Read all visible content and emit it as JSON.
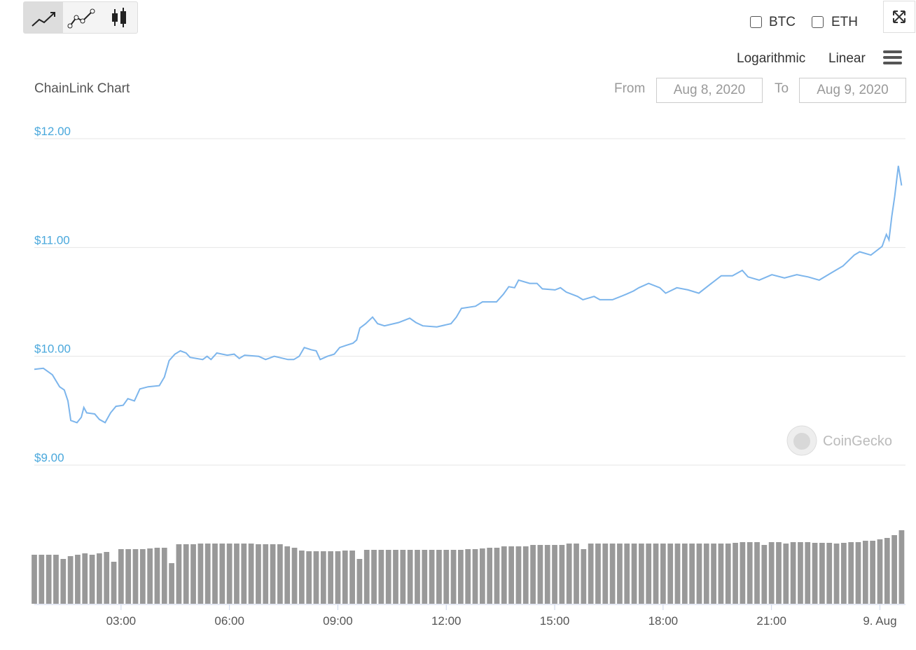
{
  "ui": {
    "toggles": [
      "BTC",
      "ETH"
    ],
    "scales": [
      "Logarithmic",
      "Linear"
    ],
    "from_label": "From",
    "from_date": "Aug 8, 2020",
    "to_label": "To",
    "to_date": "Aug 9, 2020",
    "watermark": "CoinGecko"
  },
  "chart_data": {
    "type": "line",
    "title": "ChainLink Chart",
    "xlim": [
      0.6,
      24.65
    ],
    "xticks": [
      {
        "value": 3,
        "label": "03:00"
      },
      {
        "value": 6,
        "label": "06:00"
      },
      {
        "value": 9,
        "label": "09:00"
      },
      {
        "value": 12,
        "label": "12:00"
      },
      {
        "value": 15,
        "label": "15:00"
      },
      {
        "value": 18,
        "label": "18:00"
      },
      {
        "value": 21,
        "label": "21:00"
      },
      {
        "value": 24,
        "label": "9. Aug"
      }
    ],
    "ylim": [
      9,
      12
    ],
    "yticks": [
      {
        "value": 9,
        "label": "$9.00"
      },
      {
        "value": 10,
        "label": "$10.00"
      },
      {
        "value": 11,
        "label": "$11.00"
      },
      {
        "value": 12,
        "label": "$12.00"
      }
    ],
    "y2lim": [
      0,
      182
    ],
    "grid": true,
    "series": [
      {
        "color": "#7cb5ec",
        "x": [
          0.6,
          0.85,
          1.1,
          1.3,
          1.43,
          1.53,
          1.61,
          1.78,
          1.9,
          1.97,
          2.05,
          2.27,
          2.4,
          2.56,
          2.71,
          2.86,
          3.06,
          3.19,
          3.37,
          3.52,
          3.75,
          4.06,
          4.2,
          4.33,
          4.49,
          4.64,
          4.8,
          4.91,
          5.26,
          5.38,
          5.49,
          5.65,
          5.94,
          6.13,
          6.27,
          6.42,
          6.81,
          7.0,
          7.24,
          7.62,
          7.78,
          7.93,
          8.07,
          8.26,
          8.4,
          8.51,
          8.71,
          8.9,
          9.05,
          9.23,
          9.42,
          9.52,
          9.61,
          9.77,
          9.96,
          10.1,
          10.29,
          10.68,
          10.99,
          11.16,
          11.35,
          11.74,
          12.13,
          12.28,
          12.42,
          12.81,
          13.0,
          13.39,
          13.58,
          13.73,
          13.89,
          14.0,
          14.31,
          14.51,
          14.66,
          15.01,
          15.16,
          15.32,
          15.63,
          15.78,
          16.09,
          16.25,
          16.6,
          16.98,
          17.18,
          17.33,
          17.6,
          17.91,
          18.07,
          18.38,
          18.69,
          18.99,
          19.3,
          19.61,
          19.92,
          20.19,
          20.35,
          20.66,
          21.01,
          21.36,
          21.7,
          22.01,
          22.32,
          22.67,
          22.98,
          23.29,
          23.44,
          23.75,
          24.06,
          24.18,
          24.25,
          24.33,
          24.41,
          24.51,
          24.6
        ],
        "values": [
          9.88,
          9.89,
          9.83,
          9.72,
          9.69,
          9.59,
          9.41,
          9.39,
          9.44,
          9.53,
          9.48,
          9.47,
          9.42,
          9.39,
          9.48,
          9.54,
          9.55,
          9.61,
          9.59,
          9.7,
          9.72,
          9.73,
          9.81,
          9.96,
          10.02,
          10.05,
          10.03,
          9.99,
          9.97,
          10.0,
          9.97,
          10.03,
          10.01,
          10.02,
          9.98,
          10.01,
          10.0,
          9.97,
          10.0,
          9.97,
          9.97,
          10.0,
          10.08,
          10.06,
          10.05,
          9.97,
          10.0,
          10.02,
          10.08,
          10.1,
          10.12,
          10.15,
          10.26,
          10.3,
          10.36,
          10.3,
          10.28,
          10.31,
          10.35,
          10.31,
          10.28,
          10.27,
          10.3,
          10.36,
          10.44,
          10.46,
          10.5,
          10.5,
          10.57,
          10.64,
          10.63,
          10.7,
          10.67,
          10.67,
          10.62,
          10.61,
          10.63,
          10.59,
          10.55,
          10.52,
          10.55,
          10.52,
          10.52,
          10.57,
          10.6,
          10.63,
          10.67,
          10.63,
          10.58,
          10.63,
          10.61,
          10.58,
          10.66,
          10.74,
          10.74,
          10.79,
          10.73,
          10.7,
          10.75,
          10.72,
          10.75,
          10.73,
          10.7,
          10.77,
          10.83,
          10.93,
          10.96,
          10.93,
          11.01,
          11.12,
          11.07,
          11.29,
          11.47,
          11.75,
          11.57
        ]
      },
      {
        "type": "bar",
        "axis": "y2",
        "color": "#999999",
        "x": [
          0.6,
          0.8,
          1.0,
          1.2,
          1.4,
          1.6,
          1.8,
          2.0,
          2.2,
          2.4,
          2.6,
          2.8,
          3.0,
          3.2,
          3.4,
          3.6,
          3.8,
          4.0,
          4.2,
          4.4,
          4.6,
          4.8,
          5.0,
          5.2,
          5.4,
          5.6,
          5.8,
          6.0,
          6.2,
          6.4,
          6.6,
          6.8,
          7.0,
          7.2,
          7.4,
          7.6,
          7.8,
          8.0,
          8.2,
          8.4,
          8.6,
          8.8,
          9.0,
          9.2,
          9.4,
          9.6,
          9.8,
          10.0,
          10.2,
          10.4,
          10.6,
          10.8,
          11.0,
          11.2,
          11.4,
          11.6,
          11.8,
          12.0,
          12.2,
          12.4,
          12.6,
          12.8,
          13.0,
          13.2,
          13.4,
          13.6,
          13.8,
          14.0,
          14.2,
          14.4,
          14.6,
          14.8,
          15.0,
          15.2,
          15.4,
          15.6,
          15.8,
          16.0,
          16.2,
          16.4,
          16.6,
          16.8,
          17.0,
          17.2,
          17.4,
          17.6,
          17.8,
          18.0,
          18.2,
          18.4,
          18.6,
          18.8,
          19.0,
          19.2,
          19.4,
          19.6,
          19.8,
          20.0,
          20.2,
          20.4,
          20.6,
          20.8,
          21.0,
          21.2,
          21.4,
          21.6,
          21.8,
          22.0,
          22.2,
          22.4,
          22.6,
          22.8,
          23.0,
          23.2,
          23.4,
          23.6,
          23.8,
          24.0,
          24.2,
          24.4,
          24.6
        ],
        "values": [
          70,
          70,
          70,
          70,
          64,
          68,
          70,
          72,
          70,
          72,
          74,
          60,
          78,
          78,
          78,
          78,
          79,
          80,
          80,
          58,
          85,
          85,
          85,
          86,
          86,
          86,
          86,
          86,
          86,
          86,
          86,
          85,
          85,
          85,
          85,
          82,
          80,
          76,
          75,
          75,
          75,
          75,
          75,
          76,
          76,
          64,
          77,
          77,
          77,
          77,
          77,
          77,
          77,
          77,
          77,
          77,
          77,
          77,
          77,
          77,
          78,
          78,
          79,
          80,
          80,
          82,
          82,
          82,
          82,
          84,
          84,
          84,
          84,
          84,
          86,
          86,
          78,
          86,
          86,
          86,
          86,
          86,
          86,
          86,
          86,
          86,
          86,
          86,
          86,
          86,
          86,
          86,
          86,
          86,
          86,
          86,
          86,
          87,
          88,
          88,
          88,
          84,
          88,
          88,
          86,
          88,
          88,
          88,
          87,
          87,
          87,
          86,
          87,
          88,
          88,
          90,
          90,
          92,
          94,
          98,
          105
        ]
      }
    ]
  }
}
